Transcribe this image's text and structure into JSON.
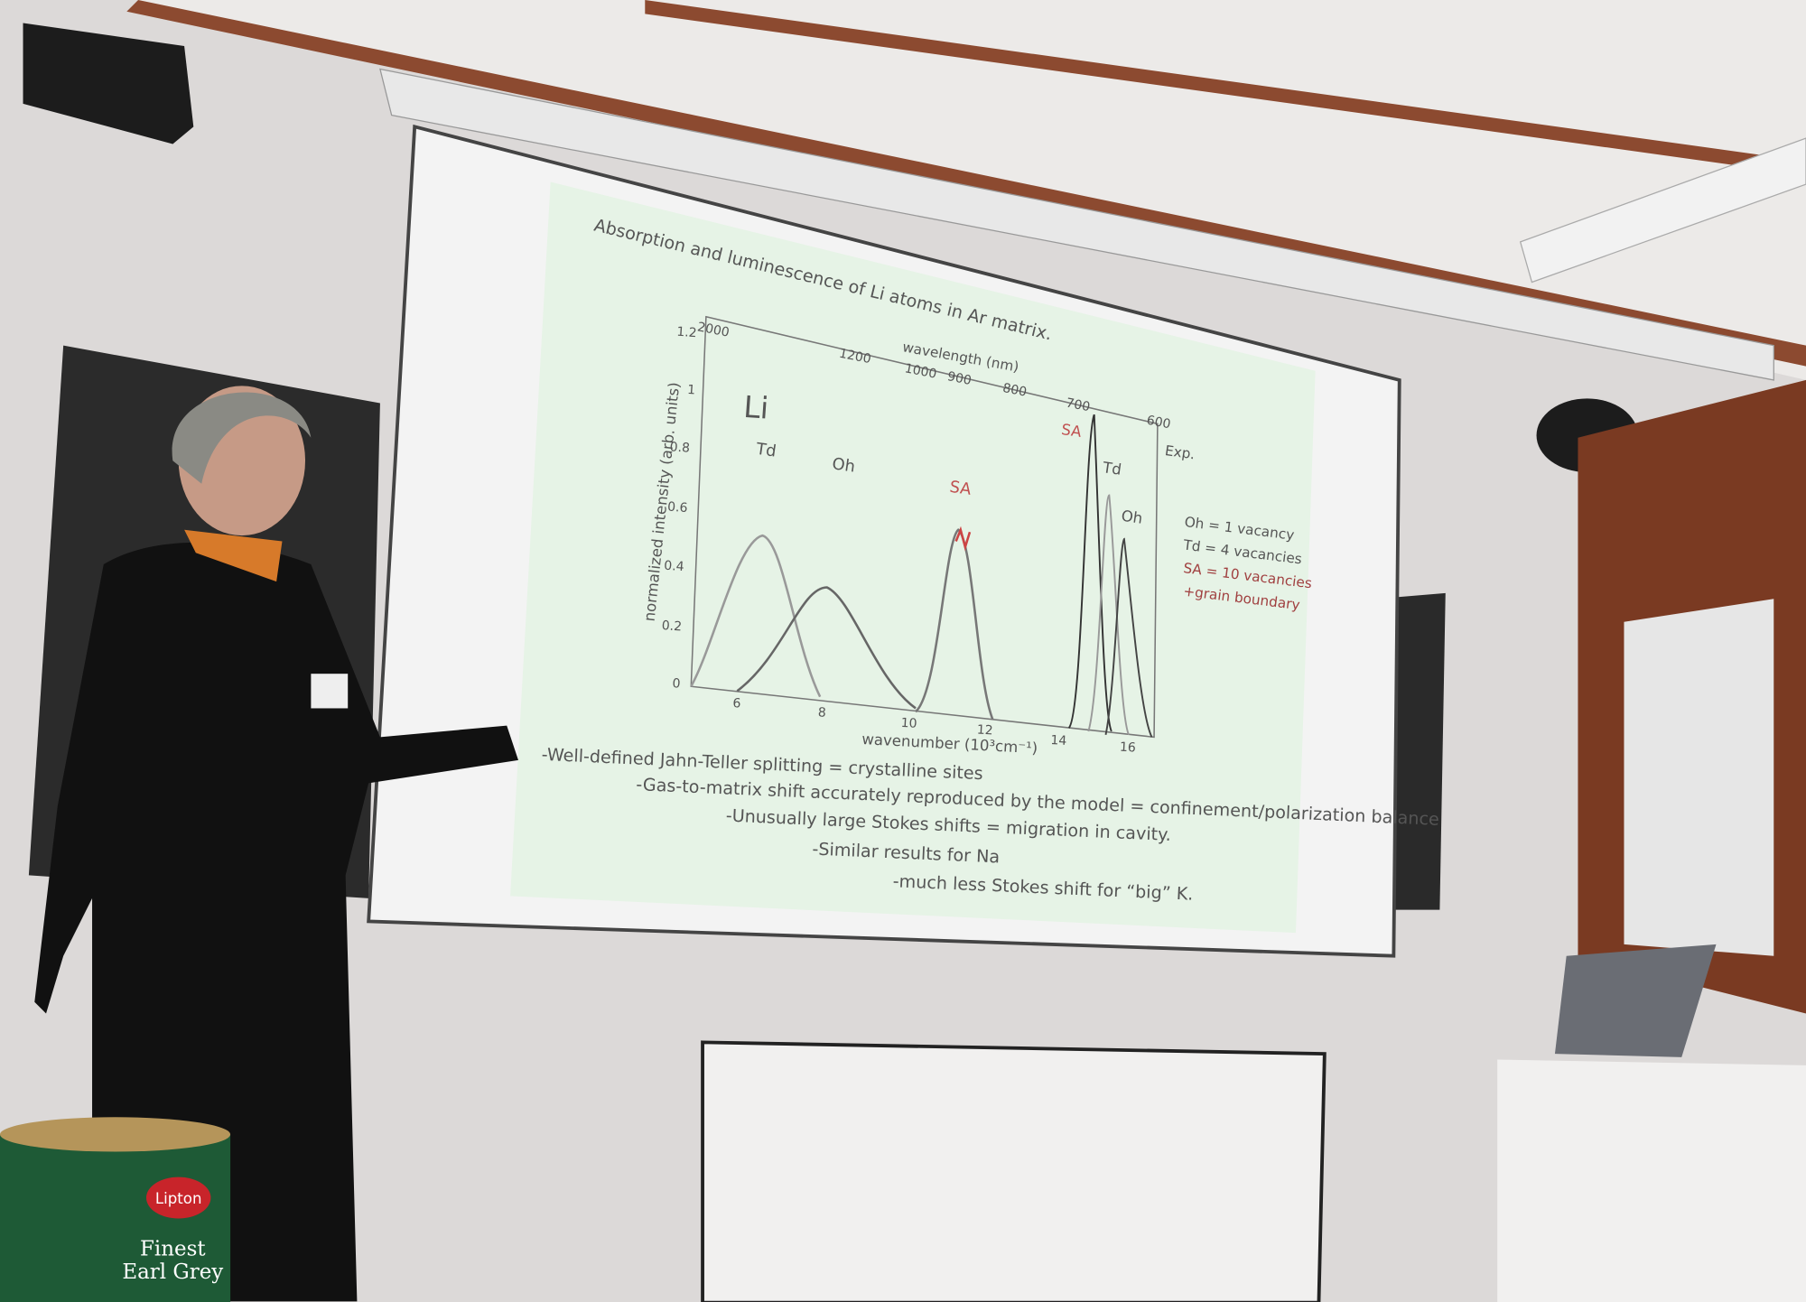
{
  "slide": {
    "title": "Absorption and luminescence of Li atoms in Ar matrix.",
    "plot": {
      "top_axis_label": "wavelength (nm)",
      "top_ticks": [
        "2000",
        "1200",
        "1000",
        "900",
        "800",
        "700",
        "600"
      ],
      "y_axis_label": "normalized intensity (arb. units)",
      "y_ticks": [
        "0",
        "0.2",
        "0.4",
        "0.6",
        "0.8",
        "1",
        "1.2"
      ],
      "x_axis_label": "wavenumber (10³cm⁻¹)",
      "x_ticks": [
        "6",
        "8",
        "10",
        "12",
        "14",
        "16"
      ],
      "element": "Li",
      "peak_labels": [
        "Td",
        "Oh",
        "SA"
      ],
      "exp_label": "Exp.",
      "exp_peak_labels": [
        "SA",
        "Td",
        "Oh"
      ],
      "legend": [
        "Oh = 1 vacancy",
        "Td = 4 vacancies",
        "SA = 10 vacancies",
        "+grain boundary"
      ]
    },
    "bullets": [
      "-Well-defined Jahn-Teller splitting = crystalline sites",
      "-Gas-to-matrix shift accurately reproduced by the model = confinement/polarization balance",
      "-Unusually large Stokes shifts = migration in cavity.",
      "-Similar results for Na",
      "-much less Stokes shift for “big” K."
    ]
  },
  "tin": {
    "brand": "Lipton",
    "label": "Finest Earl Grey"
  }
}
